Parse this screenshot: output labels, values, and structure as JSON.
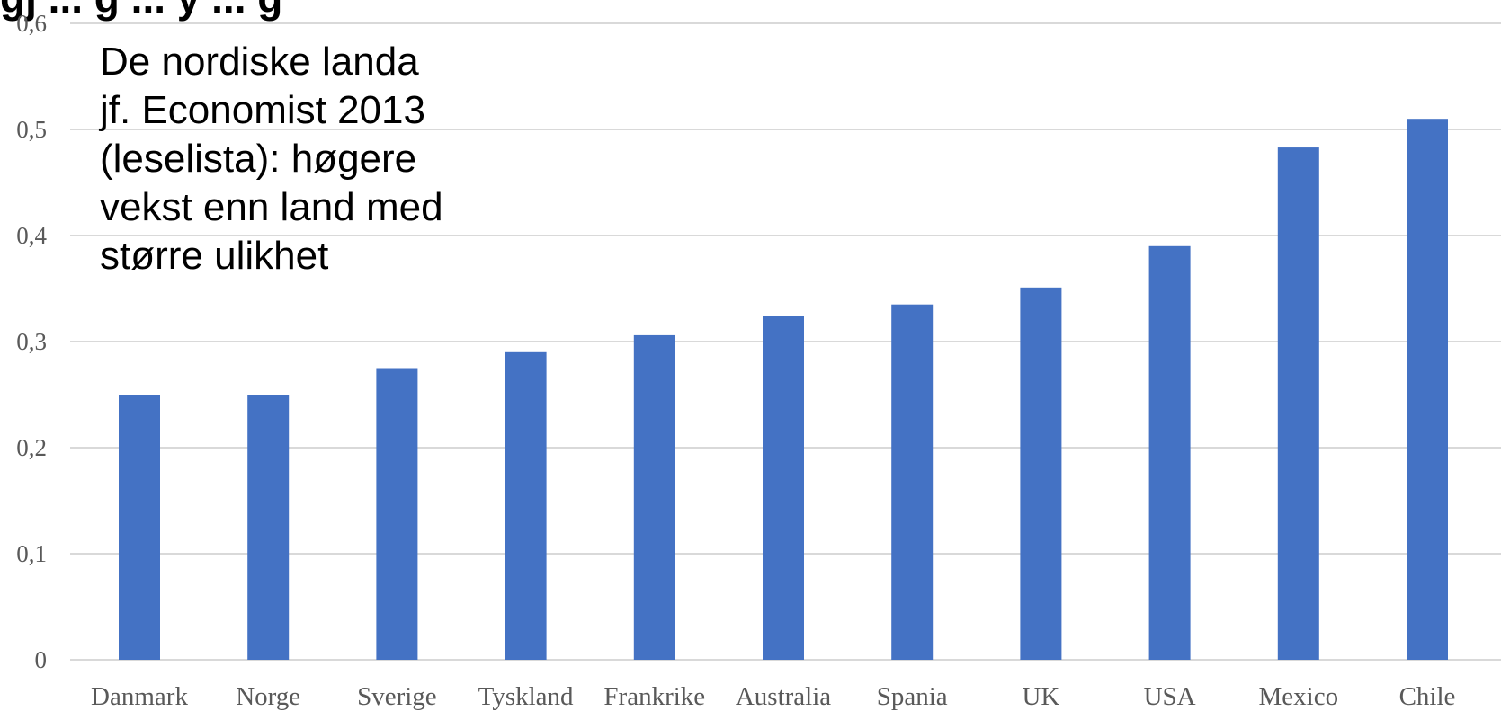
{
  "chart_data": {
    "type": "bar",
    "title_cropped": "gj  ...  g  ...  y  ...  g",
    "categories": [
      "Danmark",
      "Norge",
      "Sverige",
      "Tyskland",
      "Frankrike",
      "Australia",
      "Spania",
      "UK",
      "USA",
      "Mexico",
      "Chile"
    ],
    "values": [
      0.25,
      0.25,
      0.275,
      0.29,
      0.306,
      0.324,
      0.335,
      0.351,
      0.39,
      0.483,
      0.51
    ],
    "ylim": [
      0,
      0.6
    ],
    "yticks": [
      "0",
      "0,1",
      "0,2",
      "0,3",
      "0,4",
      "0,5",
      "0,6"
    ],
    "bar_color": "#4472c4",
    "grid": true,
    "annotation_lines": [
      "De nordiske landa",
      "jf. Economist 2013",
      "(leselista): høgere",
      "vekst enn land med",
      "større ulikhet"
    ]
  }
}
